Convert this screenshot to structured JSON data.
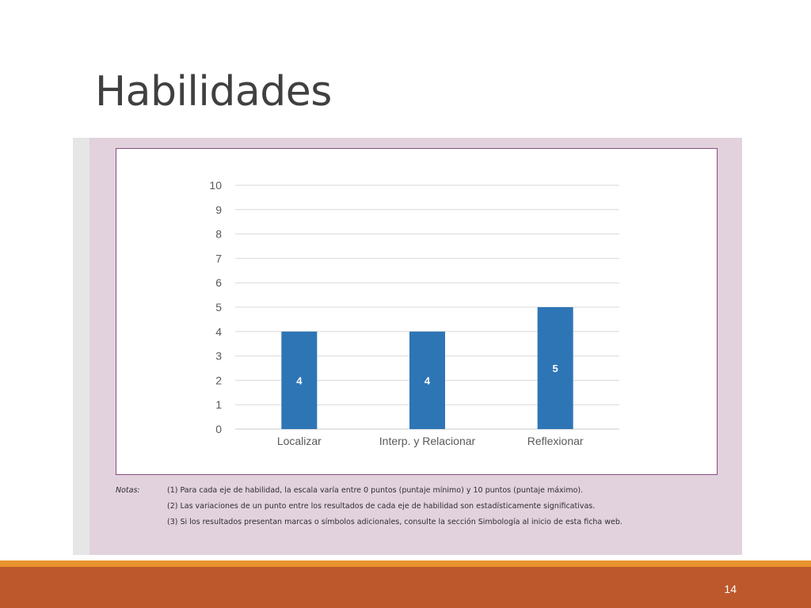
{
  "slide": {
    "title": "Habilidades",
    "page_number": "14"
  },
  "notes": {
    "label": "Notas:",
    "lines": [
      "(1) Para cada eje de habilidad, la escala varía entre 0 puntos (puntaje mínimo) y 10 puntos (puntaje máximo).",
      "(2) Las variaciones de un punto entre los resultados de cada eje de habilidad son estadísticamente significativas.",
      "(3) Si los resultados presentan marcas o símbolos adicionales, consulte la sección Simbología al inicio de esta ficha web."
    ]
  },
  "colors": {
    "bar": "#2e75b6",
    "panel": "#e2d2de",
    "border": "#8a4c7e",
    "footer": "#bd582c",
    "footer_stripe": "#e8922d"
  },
  "chart_data": {
    "type": "bar",
    "categories": [
      "Localizar",
      "Interp. y Relacionar",
      "Reflexionar"
    ],
    "values": [
      4,
      4,
      5
    ],
    "data_labels": [
      "4",
      "4",
      "5"
    ],
    "y_ticks": [
      "0",
      "1",
      "2",
      "3",
      "4",
      "5",
      "6",
      "7",
      "8",
      "9",
      "10"
    ],
    "ylim": [
      0,
      10
    ],
    "grid": true,
    "legend": false
  }
}
